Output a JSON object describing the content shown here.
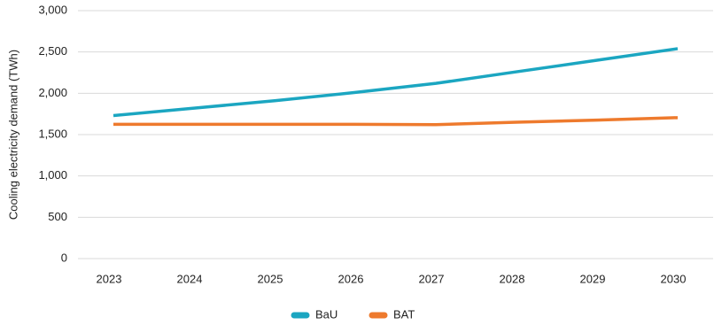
{
  "chart_data": {
    "type": "line",
    "y_label": "Cooling electricity demand (TWh)",
    "categories": [
      "2023",
      "2024",
      "2025",
      "2026",
      "2027",
      "2028",
      "2029",
      "2030"
    ],
    "series": [
      {
        "name": "BaU",
        "color": "#1ba6c1",
        "values": [
          1730,
          1820,
          1910,
          2010,
          2120,
          2260,
          2400,
          2540
        ]
      },
      {
        "name": "BAT",
        "color": "#ee7a2d",
        "values": [
          1625,
          1625,
          1625,
          1625,
          1620,
          1650,
          1675,
          1705
        ]
      }
    ],
    "ylim": [
      0,
      3000
    ],
    "yticks": [
      0,
      500,
      {
        "value": 1000,
        "label": "1,000"
      },
      {
        "value": 1500,
        "label": "1,500"
      },
      {
        "value": 2000,
        "label": "2,000"
      },
      {
        "value": 2500,
        "label": "2,500"
      },
      {
        "value": 3000,
        "label": "3,000"
      }
    ],
    "grid": true
  }
}
